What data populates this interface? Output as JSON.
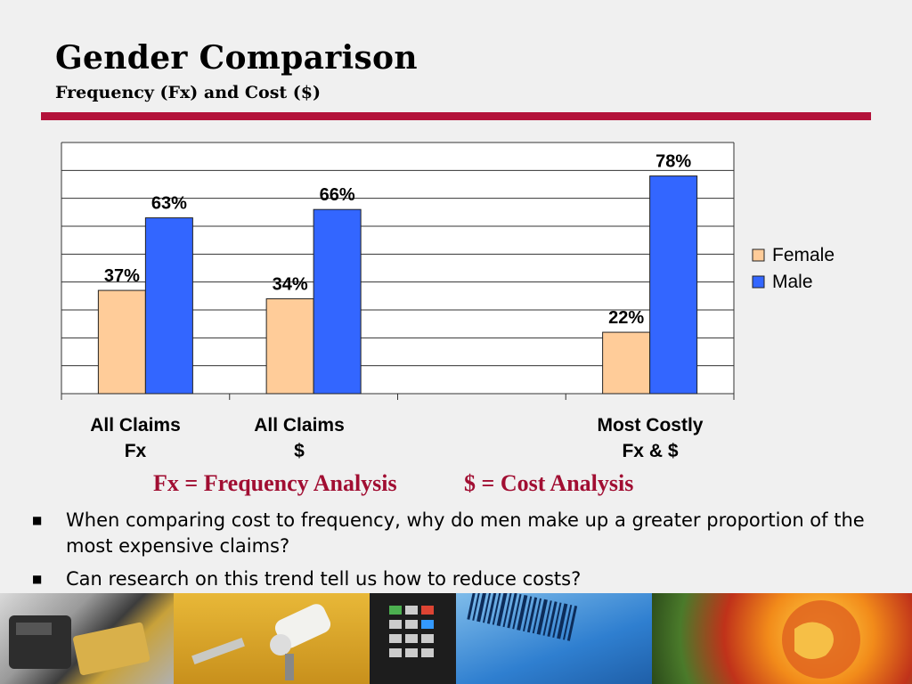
{
  "slide": {
    "title": "Gender Comparison",
    "subtitle": "Frequency (Fx) and Cost ($)"
  },
  "chart_data": {
    "type": "bar",
    "categories": [
      [
        "All Claims",
        "Fx"
      ],
      [
        "All Claims",
        "$"
      ],
      [
        "",
        ""
      ],
      [
        "Most Costly",
        "Fx & $"
      ]
    ],
    "series": [
      {
        "name": "Female",
        "values": [
          37,
          34,
          null,
          22
        ],
        "labels": [
          "37%",
          "34%",
          "",
          "22%"
        ],
        "color": "#ffcc99"
      },
      {
        "name": "Male",
        "values": [
          63,
          66,
          null,
          78
        ],
        "labels": [
          "63%",
          "66%",
          "",
          "78%"
        ],
        "color": "#3366ff"
      }
    ],
    "ylim": [
      0,
      90
    ],
    "grid": true,
    "legend": "right"
  },
  "captions": {
    "fx": "Fx = Frequency Analysis",
    "cost": "$ = Cost Analysis"
  },
  "bullets": [
    "When comparing cost to frequency, why do men make up a greater proportion of the most expensive claims?",
    "Can research on this trend tell us how to reduce costs?"
  ],
  "bullet_marker": "■",
  "colors": {
    "accent": "#b3123a",
    "caption": "#a10e32"
  }
}
